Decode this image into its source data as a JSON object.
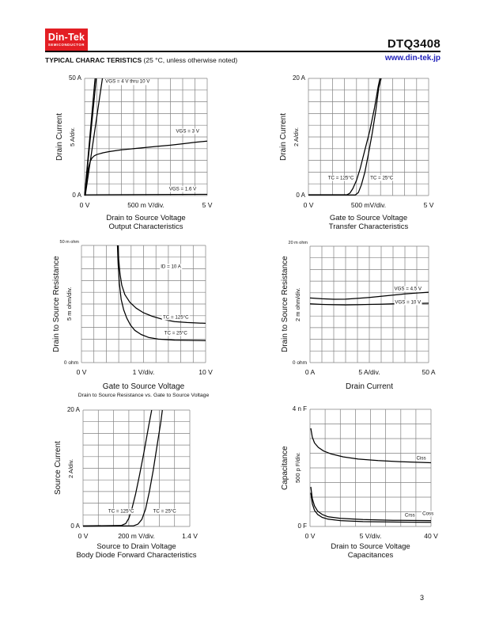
{
  "page": {
    "number": "3"
  },
  "header": {
    "logo": {
      "brand": "Din-Tek",
      "sub": "SEMICONDUCTOR"
    },
    "part_number": "DTQ3408",
    "website": "www.din-tek.jp",
    "section_title_bold": "TYPICAL CHARAC TERISTICS",
    "section_title_note": "(25 °C, unless otherwise noted)"
  },
  "colors": {
    "logo_red": "#e31e24",
    "link_blue": "#2222bb",
    "grid": "#828282",
    "curve": "#000000"
  },
  "chart_data": [
    {
      "type": "line",
      "name": "output-characteristics",
      "title": "Output Characteristics",
      "xlabel": "Drain to Source Voltage",
      "ylabel": "Drain Current",
      "y_div": "5 A/div.",
      "y_top_tick": "50 A",
      "y_bottom_tick": "0 A",
      "x_ticks": [
        "0 V",
        "500 m V/div.",
        "5 V"
      ],
      "x_range": [
        0,
        5
      ],
      "x_unit": "V",
      "y_range": [
        0,
        50
      ],
      "y_unit": "A",
      "grid": {
        "cols": 10,
        "rows": 10
      },
      "point_units": "grid divisions (x: 500 mV/div, y: 5 A/div)",
      "series": [
        {
          "name": "VGS = 4 V thru 10 V (a)",
          "points": [
            [
              0,
              0
            ],
            [
              0.85,
              10
            ]
          ]
        },
        {
          "name": "VGS = 4 V thru 10 V (b)",
          "points": [
            [
              0,
              0
            ],
            [
              0.95,
              10
            ]
          ]
        },
        {
          "name": "VGS = 4 V thru 10 V (c)",
          "points": [
            [
              0.05,
              0
            ],
            [
              1.45,
              10
            ]
          ]
        },
        {
          "name": "VGS = 3 V",
          "points": [
            [
              0,
              0
            ],
            [
              0.15,
              1.2
            ],
            [
              0.3,
              2.3
            ],
            [
              0.45,
              2.9
            ],
            [
              0.6,
              3.2
            ],
            [
              0.8,
              3.4
            ],
            [
              1,
              3.5
            ],
            [
              1.5,
              3.65
            ],
            [
              2,
              3.75
            ],
            [
              3,
              3.9
            ],
            [
              4,
              4
            ],
            [
              5,
              4.1
            ],
            [
              6,
              4.2
            ],
            [
              7,
              4.3
            ],
            [
              8,
              4.42
            ],
            [
              9,
              4.55
            ],
            [
              10,
              4.65
            ]
          ]
        },
        {
          "name": "VGS = 1.6 V",
          "points": [
            [
              0,
              0.06
            ],
            [
              10,
              0.1
            ]
          ]
        }
      ],
      "annotations": [
        {
          "text": "VGS = 4 V thru 10 V",
          "x": 3.5,
          "y": 9.7
        },
        {
          "text": "VGS = 3 V",
          "x": 8.4,
          "y": 5.5
        },
        {
          "text": "VGS = 1.6 V",
          "x": 8.0,
          "y": 0.55
        }
      ]
    },
    {
      "type": "line",
      "name": "transfer-characteristics",
      "title": "Transfer Characteristics",
      "xlabel": "Gate to Source Voltage",
      "ylabel": "Drain Current",
      "y_div": "2 A/div.",
      "y_top_tick": "20 A",
      "y_bottom_tick": "0 A",
      "x_ticks": [
        "0 V",
        "500 mV/div.",
        "5 V"
      ],
      "x_range": [
        0,
        5
      ],
      "x_unit": "V",
      "y_range": [
        0,
        20
      ],
      "y_unit": "A",
      "grid": {
        "cols": 10,
        "rows": 10
      },
      "point_units": "grid divisions (x: 500 mV/div, y: 2 A/div)",
      "series": [
        {
          "name": "TC = 125°C",
          "points": [
            [
              0,
              0.07
            ],
            [
              3.2,
              0.07
            ],
            [
              3.45,
              0.2
            ],
            [
              3.7,
              0.6
            ],
            [
              4,
              1.3
            ],
            [
              4.3,
              2.3
            ],
            [
              4.7,
              3.9
            ],
            [
              5.1,
              5.5
            ],
            [
              5.5,
              7.5
            ],
            [
              5.8,
              9.3
            ],
            [
              5.95,
              10
            ]
          ]
        },
        {
          "name": "TC = 25°C",
          "points": [
            [
              0,
              0.05
            ],
            [
              3.9,
              0.05
            ],
            [
              4.15,
              0.25
            ],
            [
              4.4,
              0.9
            ],
            [
              4.7,
              2
            ],
            [
              5,
              3.6
            ],
            [
              5.3,
              5.3
            ],
            [
              5.6,
              7.2
            ],
            [
              5.85,
              9.2
            ],
            [
              6.05,
              10
            ]
          ]
        }
      ],
      "annotations": [
        {
          "text": "TC = 125°C",
          "x": 2.7,
          "y": 1.5
        },
        {
          "text": "TC = 25°C",
          "x": 6.1,
          "y": 1.5
        }
      ]
    },
    {
      "type": "line",
      "name": "rds-vs-vgs",
      "xlabel": "Gate to Source Voltage",
      "subtitle": "Drain to Source Resistance vs. Gate to Source Voltage",
      "ylabel": "Drain to Source Resistance",
      "y_div": "5 m ohm/div.",
      "y_top_tick": "50 m ohm",
      "y_bottom_tick": "0 ohm",
      "x_ticks": [
        "0 V",
        "1 V/div.",
        "10 V"
      ],
      "x_range": [
        0,
        10
      ],
      "x_unit": "V",
      "y_range": [
        0,
        50
      ],
      "y_unit": "m ohm",
      "grid": {
        "cols": 10,
        "rows": 10
      },
      "point_units": "grid divisions (x: 1 V/div, y: 5 m ohm/div)",
      "series": [
        {
          "name": "TC = 125°C",
          "points": [
            [
              2.95,
              10
            ],
            [
              3,
              8.8
            ],
            [
              3.1,
              7.6
            ],
            [
              3.25,
              6.6
            ],
            [
              3.5,
              5.8
            ],
            [
              3.9,
              5.15
            ],
            [
              4.4,
              4.65
            ],
            [
              5,
              4.25
            ],
            [
              5.7,
              3.95
            ],
            [
              6.5,
              3.7
            ],
            [
              7.5,
              3.5
            ],
            [
              8.5,
              3.42
            ],
            [
              10,
              3.35
            ]
          ]
        },
        {
          "name": "TC = 25°C",
          "points": [
            [
              2.9,
              10
            ],
            [
              2.95,
              8.5
            ],
            [
              3.05,
              6.8
            ],
            [
              3.2,
              5.4
            ],
            [
              3.4,
              4.5
            ],
            [
              3.65,
              3.8
            ],
            [
              3.95,
              3.2
            ],
            [
              4.3,
              2.75
            ],
            [
              4.8,
              2.4
            ],
            [
              5.4,
              2.15
            ],
            [
              6.2,
              2
            ],
            [
              7.5,
              1.92
            ],
            [
              10,
              1.88
            ]
          ]
        }
      ],
      "annotations": [
        {
          "text": "ID = 10 A",
          "x": 7.2,
          "y": 8.2
        },
        {
          "text": "TC = 125°C",
          "x": 7.6,
          "y": 3.85
        },
        {
          "text": "TC = 25°C",
          "x": 7.6,
          "y": 2.5
        }
      ]
    },
    {
      "type": "line",
      "name": "rds-vs-id",
      "xlabel": "Drain Current",
      "ylabel": "Drain to Source Resistance",
      "y_div": "2 m ohm/div.",
      "y_top_tick": "20 m ohm",
      "y_bottom_tick": "0 ohm",
      "x_ticks": [
        "0 A",
        "5 A/div.",
        "50 A"
      ],
      "x_range": [
        0,
        50
      ],
      "x_unit": "A",
      "y_range": [
        0,
        20
      ],
      "y_unit": "m ohm",
      "grid": {
        "cols": 10,
        "rows": 10
      },
      "point_units": "grid divisions (x: 5 A/div, y: 2 m ohm/div)",
      "series": [
        {
          "name": "VGS = 4.5 V",
          "points": [
            [
              0,
              5.55
            ],
            [
              1,
              5.48
            ],
            [
              2,
              5.44
            ],
            [
              3,
              5.45
            ],
            [
              4,
              5.52
            ],
            [
              5,
              5.6
            ],
            [
              6,
              5.7
            ],
            [
              7,
              5.8
            ],
            [
              8,
              5.9
            ],
            [
              9,
              5.98
            ],
            [
              10,
              6.05
            ]
          ]
        },
        {
          "name": "VGS = 10 V",
          "points": [
            [
              0,
              5.05
            ],
            [
              1,
              5
            ],
            [
              2,
              4.97
            ],
            [
              3,
              4.96
            ],
            [
              4,
              4.97
            ],
            [
              5,
              5
            ],
            [
              6,
              5.02
            ],
            [
              7,
              5.05
            ],
            [
              8,
              5.07
            ],
            [
              9,
              5.09
            ],
            [
              10,
              5.1
            ]
          ]
        }
      ],
      "annotations": [
        {
          "text": "VGS = 4.5 V",
          "x": 8.25,
          "y": 6.35
        },
        {
          "text": "VGS = 10 V",
          "x": 8.25,
          "y": 5.2
        }
      ]
    },
    {
      "type": "line",
      "name": "body-diode-forward",
      "title": "Body Diode Forward Characteristics",
      "xlabel": "Source to Drain Voltage",
      "ylabel": "Source Current",
      "y_div": "2 A/div.",
      "y_top_tick": "20 A",
      "y_bottom_tick": "0 A",
      "x_ticks": [
        "0 V",
        "200 m V/div.",
        "1.4 V"
      ],
      "x_range": [
        0,
        1.4
      ],
      "x_unit": "V",
      "y_range": [
        0,
        20
      ],
      "y_unit": "A",
      "grid": {
        "cols": 7,
        "rows": 10
      },
      "point_units": "grid divisions (x: 200 mV/div, y: 2 A/div)",
      "series": [
        {
          "name": "TC = 125°C",
          "points": [
            [
              0,
              0.05
            ],
            [
              2.5,
              0.08
            ],
            [
              2.8,
              0.25
            ],
            [
              3,
              0.7
            ],
            [
              3.2,
              1.5
            ],
            [
              3.45,
              2.8
            ],
            [
              3.7,
              4.4
            ],
            [
              4,
              6.4
            ],
            [
              4.3,
              8.6
            ],
            [
              4.5,
              10
            ]
          ]
        },
        {
          "name": "TC = 25°C",
          "points": [
            [
              0,
              0.02
            ],
            [
              3.3,
              0.05
            ],
            [
              3.6,
              0.2
            ],
            [
              3.85,
              0.6
            ],
            [
              4.1,
              1.5
            ],
            [
              4.35,
              3
            ],
            [
              4.6,
              4.8
            ],
            [
              4.85,
              6.9
            ],
            [
              5.1,
              9
            ],
            [
              5.2,
              10
            ]
          ]
        }
      ],
      "annotations": [
        {
          "text": "TC = 125°C",
          "x": 2.5,
          "y": 1.3
        },
        {
          "text": "TC = 25°C",
          "x": 5.35,
          "y": 1.3
        }
      ]
    },
    {
      "type": "line",
      "name": "capacitances",
      "title": "Capacitances",
      "xlabel": "Drain to Source Voltage",
      "ylabel": "Capacitance",
      "y_div": "500 p F/div.",
      "y_top_tick": "4 n F",
      "y_bottom_tick": "0 F",
      "x_ticks": [
        "0 V",
        "5 V/div.",
        "40 V"
      ],
      "x_range": [
        0,
        40
      ],
      "x_unit": "V",
      "y_range": [
        0,
        4
      ],
      "y_unit": "nF",
      "grid": {
        "cols": 8,
        "rows": 8
      },
      "point_units": "grid divisions (x: 5 V/div, y: 500 pF/div)",
      "series": [
        {
          "name": "Ciss",
          "points": [
            [
              0.05,
              6.7
            ],
            [
              0.15,
              6.1
            ],
            [
              0.3,
              5.7
            ],
            [
              0.55,
              5.4
            ],
            [
              0.9,
              5.15
            ],
            [
              1.4,
              4.95
            ],
            [
              2.2,
              4.75
            ],
            [
              3.2,
              4.6
            ],
            [
              4.5,
              4.5
            ],
            [
              6,
              4.42
            ],
            [
              8,
              4.35
            ]
          ]
        },
        {
          "name": "Coss",
          "points": [
            [
              0.05,
              2.7
            ],
            [
              0.15,
              1.9
            ],
            [
              0.3,
              1.4
            ],
            [
              0.5,
              1.05
            ],
            [
              0.8,
              0.82
            ],
            [
              1.2,
              0.66
            ],
            [
              2,
              0.55
            ],
            [
              3.5,
              0.47
            ],
            [
              5.5,
              0.42
            ],
            [
              8,
              0.4
            ]
          ]
        },
        {
          "name": "Crss",
          "points": [
            [
              0.05,
              2.3
            ],
            [
              0.15,
              1.55
            ],
            [
              0.3,
              1.1
            ],
            [
              0.5,
              0.82
            ],
            [
              0.8,
              0.62
            ],
            [
              1.2,
              0.5
            ],
            [
              2,
              0.4
            ],
            [
              3.5,
              0.33
            ],
            [
              5.5,
              0.3
            ],
            [
              8,
              0.28
            ]
          ]
        }
      ],
      "annotations": [
        {
          "text": "Ciss",
          "x": 7.35,
          "y": 4.67
        },
        {
          "text": "Crss",
          "x": 6.6,
          "y": 0.78
        },
        {
          "text": "Coss",
          "x": 7.8,
          "y": 0.88
        }
      ]
    }
  ]
}
